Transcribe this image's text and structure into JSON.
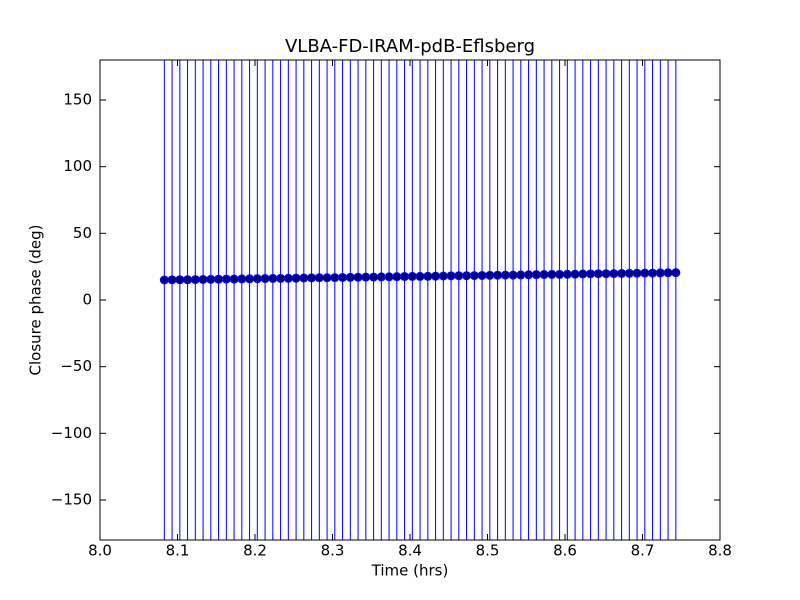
{
  "chart_data": {
    "type": "errorbar",
    "title": "VLBA-FD-IRAM-pdB-Eflsberg",
    "x_label": "Time (hrs)",
    "y_label": "Closure phase (deg)",
    "x": [
      8.083,
      8.093,
      8.103,
      8.113,
      8.123,
      8.133,
      8.143,
      8.153,
      8.163,
      8.173,
      8.183,
      8.193,
      8.203,
      8.213,
      8.223,
      8.233,
      8.243,
      8.253,
      8.263,
      8.273,
      8.283,
      8.293,
      8.303,
      8.313,
      8.323,
      8.333,
      8.343,
      8.353,
      8.363,
      8.373,
      8.383,
      8.393,
      8.403,
      8.413,
      8.423,
      8.433,
      8.443,
      8.453,
      8.463,
      8.473,
      8.483,
      8.493,
      8.503,
      8.513,
      8.523,
      8.533,
      8.543,
      8.553,
      8.563,
      8.573,
      8.583,
      8.593,
      8.603,
      8.613,
      8.623,
      8.633,
      8.643,
      8.653,
      8.663,
      8.673,
      8.683,
      8.693,
      8.703,
      8.713,
      8.723,
      8.733,
      8.743
    ],
    "values": [
      15.0,
      15.1,
      15.2,
      15.2,
      15.3,
      15.4,
      15.5,
      15.6,
      15.7,
      15.7,
      15.8,
      15.9,
      16.0,
      16.1,
      16.2,
      16.2,
      16.3,
      16.4,
      16.5,
      16.6,
      16.7,
      16.7,
      16.8,
      16.9,
      17.0,
      17.1,
      17.2,
      17.2,
      17.3,
      17.4,
      17.5,
      17.6,
      17.7,
      17.7,
      17.8,
      17.9,
      18.0,
      18.1,
      18.2,
      18.2,
      18.3,
      18.4,
      18.5,
      18.6,
      18.7,
      18.7,
      18.8,
      18.9,
      19.0,
      19.1,
      19.2,
      19.2,
      19.3,
      19.4,
      19.5,
      19.6,
      19.7,
      19.7,
      19.8,
      19.9,
      20.0,
      20.1,
      20.2,
      20.2,
      20.3,
      20.4,
      20.5
    ],
    "yerr": 200,
    "marker_color": "#000080",
    "errorbar_color": "#0000ff",
    "xlim": [
      8.0,
      8.8
    ],
    "xticks": [
      {
        "value": 8,
        "label": "8.0"
      },
      8.1,
      8.2,
      8.3,
      8.4,
      8.5,
      8.6,
      8.7,
      8.8
    ],
    "ylim": [
      -180,
      180
    ],
    "yticks": [
      {
        "value": -150,
        "label": "−150"
      },
      {
        "value": -100,
        "label": "−100"
      },
      {
        "value": -50,
        "label": "−50"
      },
      0,
      50,
      100,
      150
    ]
  }
}
